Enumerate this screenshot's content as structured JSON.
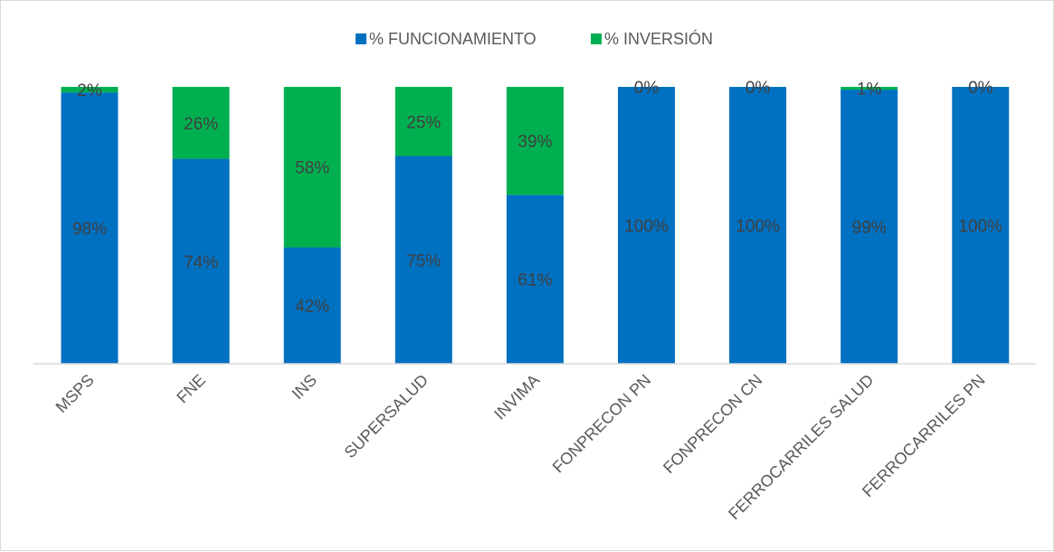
{
  "chart_data": {
    "type": "bar",
    "stacked": true,
    "percent_stacked": true,
    "categories": [
      "MSPS",
      "FNE",
      "INS",
      "SUPERSALUD",
      "INVIMA",
      "FONPRECON PN",
      "FONPRECON CN",
      "FERROCARRILES SALUD",
      "FERROCARRILES PN"
    ],
    "series": [
      {
        "name": "% FUNCIONAMIENTO",
        "color": "#0070C0",
        "values": [
          98,
          74,
          42,
          75,
          61,
          100,
          100,
          99,
          100
        ],
        "labels": [
          "98%",
          "74%",
          "42%",
          "75%",
          "61%",
          "100%",
          "100%",
          "99%",
          "100%"
        ]
      },
      {
        "name": "% INVERSIÓN",
        "color": "#00B050",
        "values": [
          2,
          26,
          58,
          25,
          39,
          0,
          0,
          1,
          0
        ],
        "labels": [
          "2%",
          "26%",
          "58%",
          "25%",
          "39%",
          "0%",
          "0%",
          "1%",
          "0%"
        ]
      }
    ],
    "ylim": [
      0,
      100
    ],
    "legend_position": "top",
    "grid": false
  }
}
